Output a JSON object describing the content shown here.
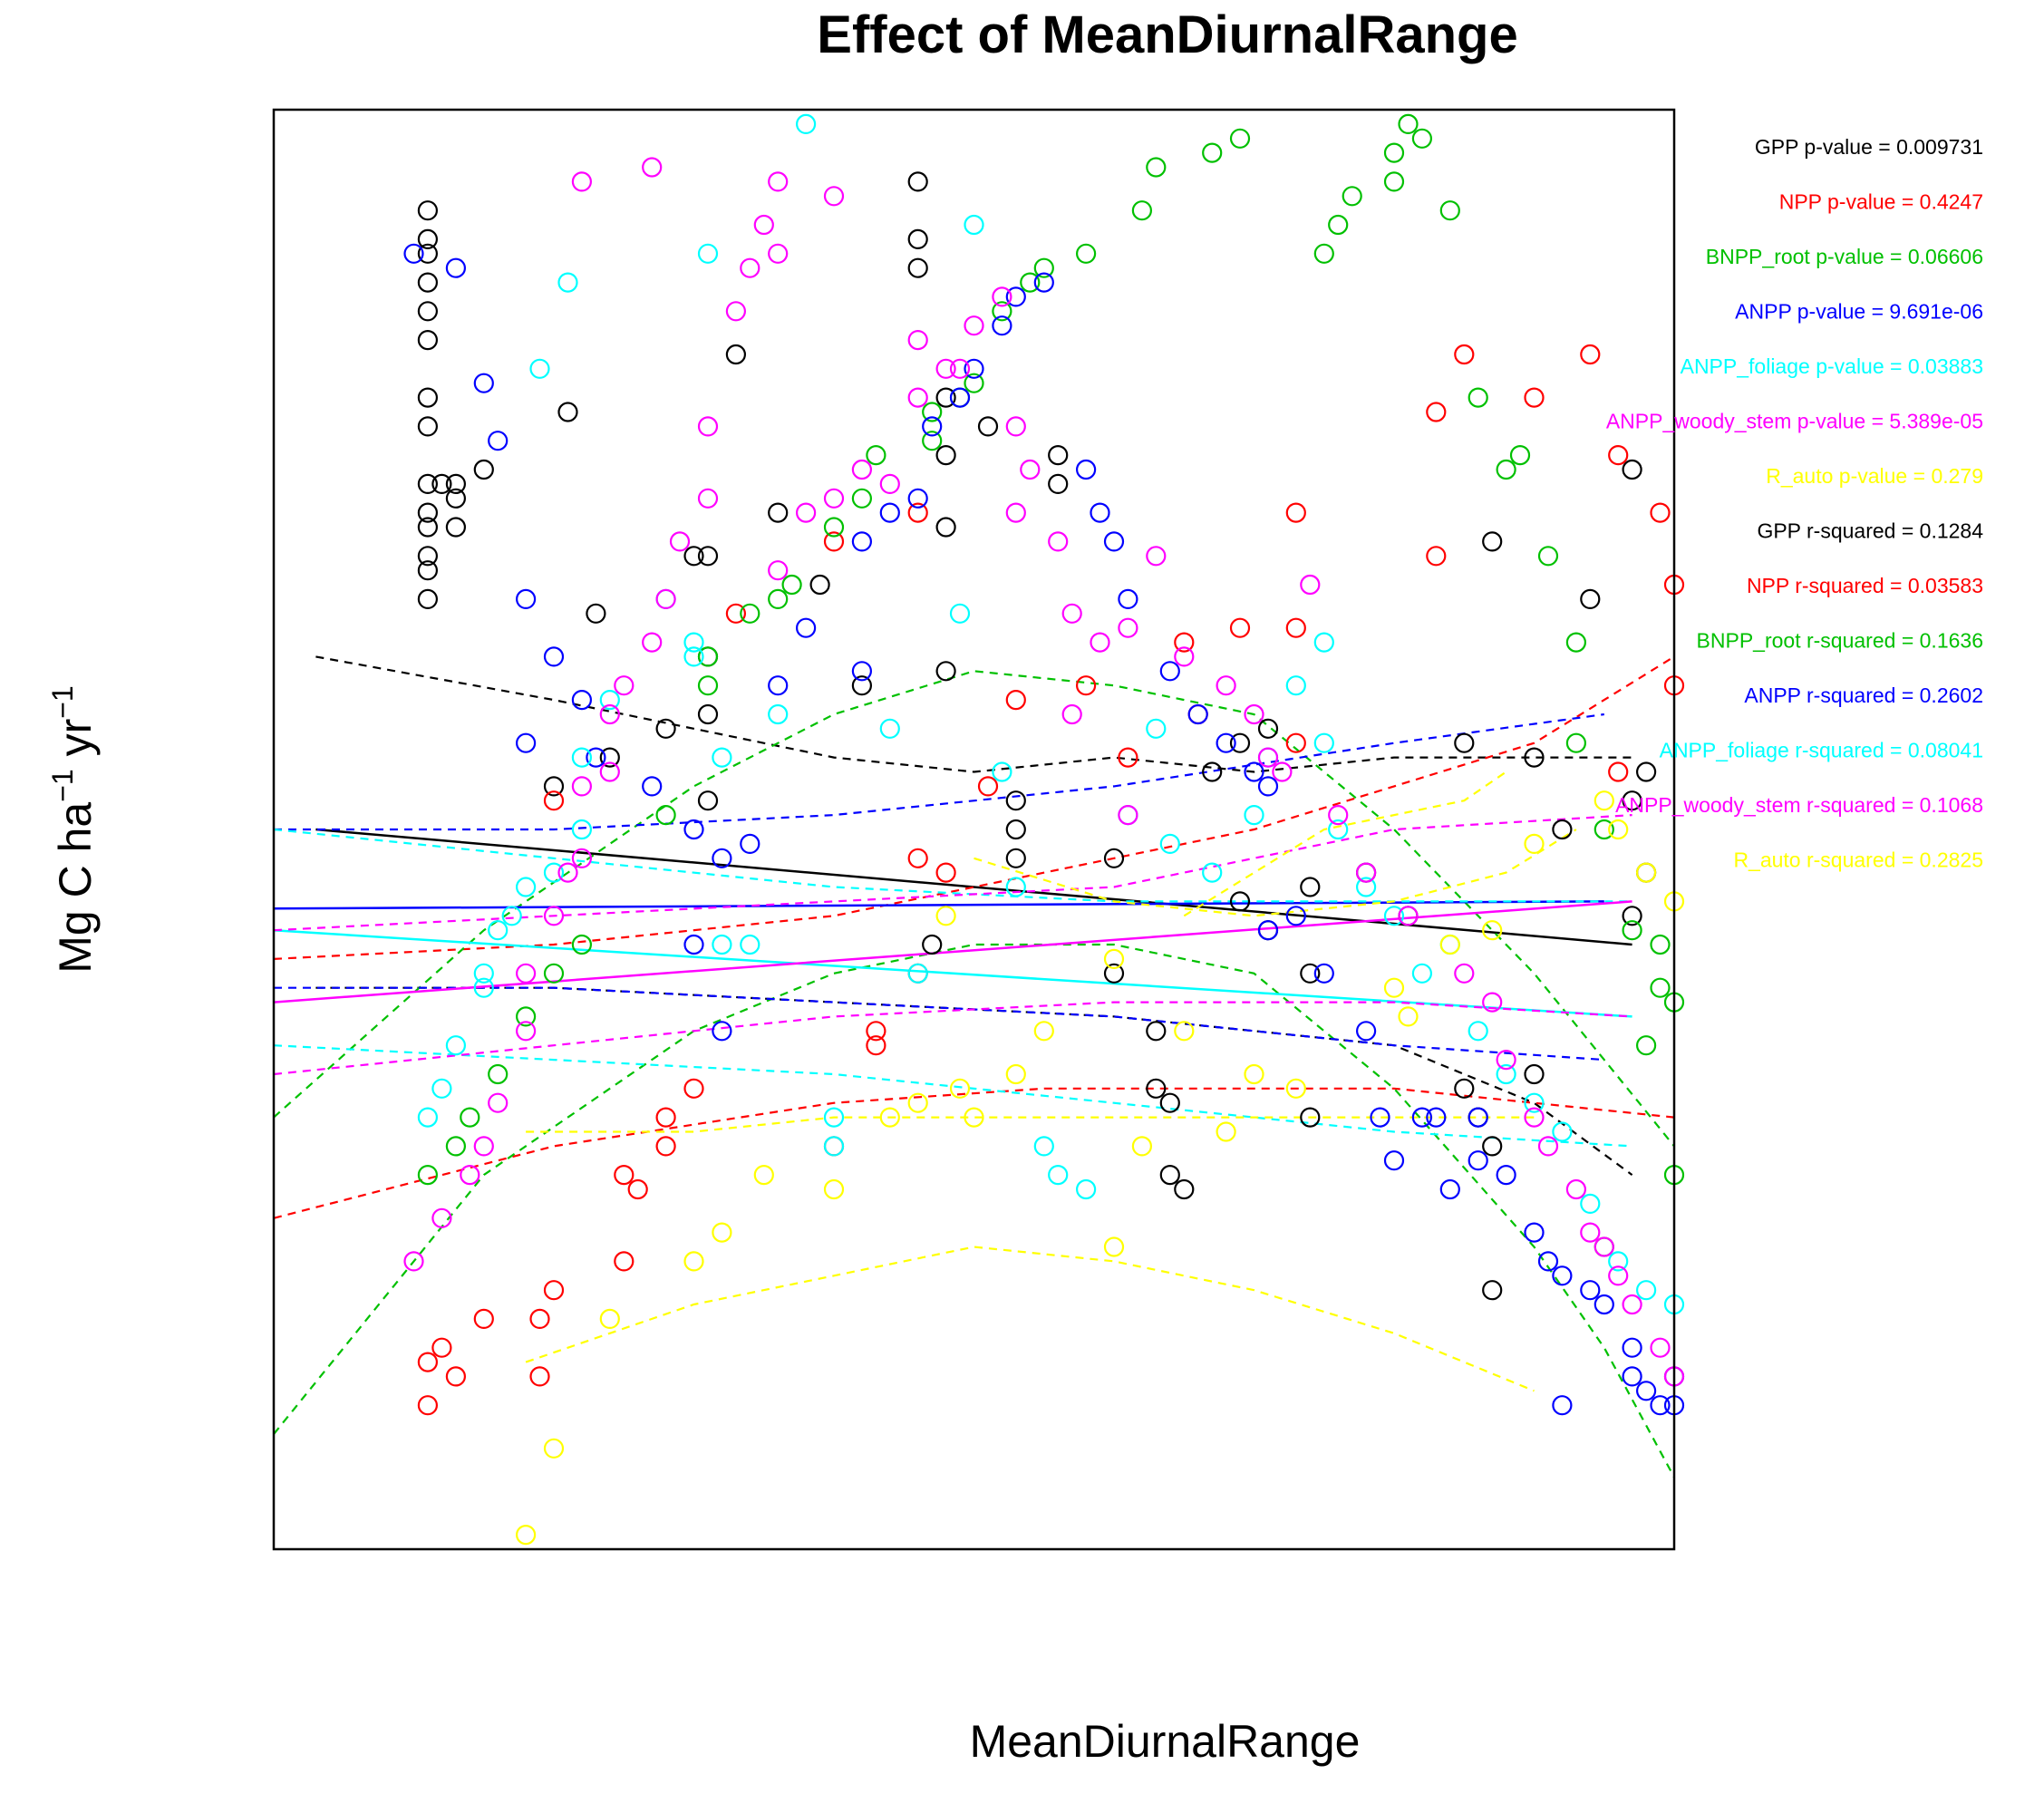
{
  "chart_data": {
    "type": "scatter",
    "title": "Effect of MeanDiurnalRange",
    "xlabel": "MeanDiurnalRange",
    "ylabel": {
      "base": "Mg C ha",
      "sup1": "−1",
      "mid": " yr",
      "sup2": "−1"
    },
    "xlim": [
      0,
      100
    ],
    "ylim": [
      0,
      100
    ],
    "axes_ticks": "none",
    "grid": false,
    "series": [
      {
        "key": "GPP",
        "color": "#000000",
        "x": [
          11,
          11,
          11,
          11,
          11,
          11,
          11,
          11,
          11,
          11,
          11,
          11,
          11,
          11,
          13,
          13,
          13,
          20,
          21,
          31,
          31,
          31,
          31,
          46,
          46,
          46,
          48,
          48,
          48,
          48,
          53,
          53,
          53,
          56,
          56,
          60,
          63,
          63,
          64,
          64,
          65,
          67,
          69,
          71,
          74,
          74,
          74,
          78,
          85,
          85,
          86,
          87,
          87,
          90,
          90,
          92,
          97,
          97,
          98,
          98,
          12,
          15,
          23,
          28,
          33,
          24,
          36,
          30,
          39,
          42,
          60,
          81,
          94,
          97,
          51,
          47,
          69,
          71,
          87
        ],
        "y": [
          93,
          91,
          90,
          88,
          86,
          84,
          80,
          78,
          74,
          72,
          71,
          69,
          68,
          66,
          74,
          73,
          71,
          53,
          79,
          69,
          62,
          58,
          52,
          95,
          91,
          89,
          80,
          76,
          71,
          61,
          52,
          50,
          48,
          76,
          74,
          40,
          36,
          32,
          31,
          26,
          25,
          54,
          45,
          43,
          46,
          40,
          30,
          47,
          56,
          32,
          30,
          28,
          18,
          55,
          33,
          50,
          44,
          52,
          47,
          54,
          74,
          75,
          65,
          57,
          83,
          55,
          72,
          69,
          67,
          60,
          48,
          44,
          66,
          75,
          78,
          42,
          56,
          57,
          70
        ]
      },
      {
        "key": "NPP",
        "color": "#FF0000",
        "x": [
          11,
          11,
          12,
          13,
          15,
          19,
          19,
          20,
          25,
          25,
          26,
          28,
          28,
          30,
          40,
          43,
          43,
          46,
          46,
          48,
          51,
          53,
          58,
          61,
          65,
          66,
          69,
          73,
          73,
          73,
          83,
          83,
          85,
          90,
          94,
          96,
          99,
          100,
          100,
          96,
          40,
          46,
          33,
          20
        ],
        "y": [
          10,
          13,
          14,
          12,
          16,
          12,
          16,
          18,
          20,
          26,
          25,
          28,
          30,
          32,
          28,
          35,
          36,
          40,
          48,
          47,
          53,
          59,
          60,
          55,
          63,
          58,
          64,
          56,
          64,
          72,
          69,
          79,
          83,
          80,
          83,
          76,
          72,
          60,
          67,
          54,
          70,
          72,
          65,
          52
        ]
      },
      {
        "key": "BNPP_root",
        "color": "#00C000",
        "x": [
          11,
          13,
          14,
          16,
          18,
          20,
          22,
          28,
          31,
          31,
          34,
          36,
          37,
          40,
          42,
          43,
          47,
          47,
          49,
          50,
          52,
          54,
          55,
          58,
          62,
          63,
          67,
          69,
          75,
          77,
          76,
          80,
          80,
          81,
          82,
          84,
          86,
          88,
          89,
          91,
          93,
          93,
          95,
          97,
          99,
          99,
          100,
          100,
          98,
          95
        ],
        "y": [
          26,
          28,
          30,
          33,
          37,
          40,
          42,
          51,
          60,
          62,
          65,
          66,
          67,
          71,
          73,
          76,
          77,
          79,
          80,
          81,
          86,
          88,
          89,
          90,
          93,
          96,
          97,
          98,
          90,
          94,
          92,
          95,
          97,
          99,
          98,
          93,
          80,
          75,
          76,
          69,
          63,
          56,
          50,
          43,
          39,
          42,
          38,
          26,
          35,
          21
        ]
      },
      {
        "key": "ANPP",
        "color": "#0000FF",
        "x": [
          10,
          13,
          15,
          16,
          18,
          18,
          20,
          22,
          23,
          27,
          30,
          30,
          32,
          32,
          34,
          36,
          38,
          42,
          42,
          44,
          46,
          47,
          49,
          50,
          52,
          53,
          55,
          58,
          59,
          60,
          61,
          64,
          66,
          68,
          70,
          71,
          71,
          73,
          75,
          78,
          79,
          80,
          82,
          84,
          86,
          88,
          90,
          91,
          92,
          94,
          95,
          97,
          97,
          98,
          99,
          100,
          100,
          92,
          86,
          83
        ],
        "y": [
          90,
          89,
          81,
          77,
          66,
          56,
          62,
          59,
          55,
          53,
          42,
          50,
          36,
          48,
          49,
          60,
          64,
          61,
          70,
          72,
          73,
          78,
          80,
          82,
          85,
          87,
          88,
          75,
          72,
          70,
          66,
          61,
          58,
          56,
          54,
          53,
          43,
          44,
          40,
          36,
          30,
          27,
          30,
          25,
          30,
          26,
          22,
          20,
          19,
          18,
          17,
          14,
          12,
          11,
          10,
          10,
          12,
          10,
          27,
          30
        ]
      },
      {
        "key": "ANPP_foliage",
        "color": "#00FFFF",
        "x": [
          11,
          12,
          13,
          15,
          15,
          16,
          17,
          18,
          20,
          22,
          22,
          24,
          28,
          30,
          30,
          32,
          32,
          34,
          36,
          40,
          40,
          44,
          46,
          49,
          52,
          53,
          55,
          56,
          58,
          61,
          63,
          64,
          67,
          70,
          71,
          73,
          75,
          75,
          76,
          78,
          80,
          82,
          84,
          86,
          88,
          90,
          92,
          94,
          96,
          98,
          100,
          19,
          21,
          31,
          38,
          50
        ],
        "y": [
          30,
          32,
          35,
          39,
          40,
          43,
          44,
          46,
          47,
          50,
          55,
          59,
          66,
          62,
          63,
          55,
          42,
          42,
          58,
          30,
          28,
          57,
          40,
          65,
          54,
          46,
          28,
          26,
          25,
          51,
          57,
          49,
          47,
          51,
          55,
          60,
          63,
          56,
          50,
          46,
          44,
          40,
          42,
          36,
          33,
          31,
          29,
          24,
          20,
          18,
          17,
          82,
          88,
          90,
          99,
          92
        ]
      },
      {
        "key": "ANPP_woody_stem",
        "color": "#FF00FF",
        "x": [
          10,
          12,
          14,
          15,
          16,
          18,
          18,
          20,
          21,
          22,
          22,
          24,
          24,
          25,
          27,
          28,
          29,
          31,
          31,
          33,
          34,
          35,
          36,
          36,
          38,
          40,
          42,
          44,
          46,
          46,
          48,
          50,
          52,
          53,
          54,
          56,
          57,
          59,
          61,
          63,
          65,
          68,
          70,
          71,
          72,
          76,
          78,
          81,
          85,
          87,
          88,
          90,
          91,
          93,
          94,
          95,
          96,
          97,
          99,
          100,
          22,
          27,
          36,
          40,
          49,
          53,
          57,
          61,
          74
        ],
        "y": [
          20,
          23,
          26,
          28,
          31,
          36,
          40,
          44,
          47,
          48,
          53,
          54,
          58,
          60,
          63,
          66,
          70,
          73,
          78,
          86,
          89,
          92,
          95,
          68,
          72,
          73,
          75,
          74,
          80,
          84,
          82,
          85,
          87,
          78,
          75,
          70,
          65,
          63,
          64,
          69,
          62,
          60,
          58,
          55,
          54,
          51,
          47,
          44,
          40,
          38,
          34,
          30,
          28,
          25,
          22,
          21,
          19,
          17,
          14,
          12,
          95,
          96,
          90,
          94,
          82,
          72,
          58,
          51,
          67
        ]
      },
      {
        "key": "R_auto",
        "color": "#FFFF00",
        "x": [
          18,
          20,
          24,
          30,
          32,
          35,
          40,
          44,
          46,
          49,
          50,
          53,
          55,
          60,
          62,
          65,
          68,
          70,
          73,
          80,
          84,
          87,
          90,
          95,
          96,
          98,
          100,
          60,
          81,
          48
        ],
        "y": [
          1,
          7,
          16,
          20,
          22,
          26,
          25,
          30,
          31,
          32,
          30,
          33,
          36,
          21,
          28,
          36,
          29,
          33,
          32,
          39,
          42,
          43,
          49,
          52,
          50,
          47,
          45,
          41,
          37,
          44
        ]
      }
    ],
    "fit_lines": [
      {
        "series": "GPP",
        "kind": "linear",
        "x": [
          3,
          97
        ],
        "y": [
          50,
          42
        ]
      },
      {
        "series": "GPP",
        "kind": "ci_upper",
        "x": [
          3,
          20,
          40,
          50,
          60,
          70,
          80,
          97
        ],
        "y": [
          62,
          59,
          55,
          54,
          55,
          54,
          55,
          55
        ]
      },
      {
        "series": "GPP",
        "kind": "ci_lower",
        "x": [
          3,
          20,
          40,
          60,
          70,
          80,
          90,
          97
        ],
        "y": [
          39,
          39,
          38,
          37,
          36,
          35,
          31,
          26
        ]
      },
      {
        "series": "NPP",
        "kind": "ci_upper",
        "x": [
          0,
          20,
          40,
          60,
          70,
          80,
          90,
          95,
          100
        ],
        "y": [
          41,
          42,
          44,
          48,
          50,
          53,
          56,
          59,
          62
        ]
      },
      {
        "series": "NPP",
        "kind": "ci_lower",
        "x": [
          0,
          20,
          40,
          55,
          70,
          80,
          90,
          100
        ],
        "y": [
          23,
          28,
          31,
          32,
          32,
          32,
          31,
          30
        ]
      },
      {
        "series": "BNPP_root",
        "kind": "ci_upper",
        "x": [
          0,
          15,
          30,
          40,
          50,
          60,
          70,
          80,
          90,
          95,
          100
        ],
        "y": [
          30,
          43,
          53,
          58,
          61,
          60,
          58,
          50,
          40,
          34,
          28
        ]
      },
      {
        "series": "BNPP_root",
        "kind": "ci_lower",
        "x": [
          0,
          15,
          30,
          40,
          50,
          60,
          70,
          80,
          90,
          95,
          100
        ],
        "y": [
          8,
          26,
          36,
          40,
          42,
          42,
          40,
          32,
          21,
          14,
          5
        ]
      },
      {
        "series": "ANPP",
        "kind": "linear",
        "x": [
          0,
          95
        ],
        "y": [
          44.5,
          45
        ]
      },
      {
        "series": "ANPP",
        "kind": "ci_upper",
        "x": [
          0,
          20,
          40,
          60,
          80,
          95
        ],
        "y": [
          50,
          50,
          51,
          53,
          56,
          58
        ]
      },
      {
        "series": "ANPP",
        "kind": "ci_lower",
        "x": [
          0,
          20,
          40,
          60,
          80,
          95
        ],
        "y": [
          39,
          39,
          38,
          37,
          35,
          34
        ]
      },
      {
        "series": "ANPP_foliage",
        "kind": "linear",
        "x": [
          0,
          97
        ],
        "y": [
          43,
          37
        ]
      },
      {
        "series": "ANPP_foliage",
        "kind": "ci_upper",
        "x": [
          0,
          20,
          40,
          60,
          80,
          97
        ],
        "y": [
          50,
          48,
          46,
          45,
          45,
          45
        ]
      },
      {
        "series": "ANPP_foliage",
        "kind": "ci_lower",
        "x": [
          0,
          20,
          40,
          60,
          80,
          97
        ],
        "y": [
          35,
          34,
          33,
          31,
          29,
          28
        ]
      },
      {
        "series": "ANPP_woody_stem",
        "kind": "linear",
        "x": [
          0,
          97
        ],
        "y": [
          38,
          45
        ]
      },
      {
        "series": "ANPP_woody_stem",
        "kind": "ci_upper",
        "x": [
          0,
          20,
          40,
          60,
          80,
          97
        ],
        "y": [
          43,
          44,
          45,
          46,
          50,
          51
        ]
      },
      {
        "series": "ANPP_woody_stem",
        "kind": "ci_lower",
        "x": [
          0,
          20,
          40,
          60,
          80,
          97
        ],
        "y": [
          33,
          35,
          37,
          38,
          38,
          37
        ]
      },
      {
        "series": "R_auto",
        "kind": "ci_upper",
        "x": [
          50,
          60,
          70,
          80,
          88,
          93
        ],
        "y": [
          48,
          45,
          44,
          45,
          47,
          50
        ]
      },
      {
        "series": "R_auto",
        "kind": "ci_lower",
        "x": [
          18,
          30,
          40,
          50,
          60,
          70,
          80,
          90
        ],
        "y": [
          13,
          17,
          19,
          21,
          20,
          18,
          15,
          11
        ]
      },
      {
        "series": "R_auto",
        "kind": "ci_upper",
        "x": [
          18,
          30,
          40,
          50,
          60,
          70,
          80,
          90
        ],
        "y": [
          29,
          29,
          30,
          30,
          30,
          30,
          30,
          30
        ]
      },
      {
        "series": "R_auto",
        "kind": "ci_lower",
        "x": [
          65,
          75,
          85,
          88
        ],
        "y": [
          44,
          50,
          52,
          54
        ]
      }
    ],
    "annotations": [
      {
        "text": "GPP p-value =  0.009731",
        "color": "#000000"
      },
      {
        "text": "NPP p-value =  0.4247",
        "color": "#FF0000"
      },
      {
        "text": "BNPP_root p-value =  0.06606",
        "color": "#00C000"
      },
      {
        "text": "ANPP p-value =  9.691e-06",
        "color": "#0000FF"
      },
      {
        "text": "ANPP_foliage p-value =  0.03883",
        "color": "#00FFFF"
      },
      {
        "text": "ANPP_woody_stem p-value =  5.389e-05",
        "color": "#FF00FF"
      },
      {
        "text": "R_auto p-value =  0.279",
        "color": "#FFFF00"
      },
      {
        "text": "GPP r-squared =  0.1284",
        "color": "#000000"
      },
      {
        "text": "NPP r-squared =  0.03583",
        "color": "#FF0000"
      },
      {
        "text": "BNPP_root r-squared =  0.1636",
        "color": "#00C000"
      },
      {
        "text": "ANPP r-squared =  0.2602",
        "color": "#0000FF"
      },
      {
        "text": "ANPP_foliage r-squared =  0.08041",
        "color": "#00FFFF"
      },
      {
        "text": "ANPP_woody_stem r-squared =  0.1068",
        "color": "#FF00FF"
      },
      {
        "text": "R_auto r-squared =  0.2825",
        "color": "#FFFF00"
      }
    ]
  }
}
